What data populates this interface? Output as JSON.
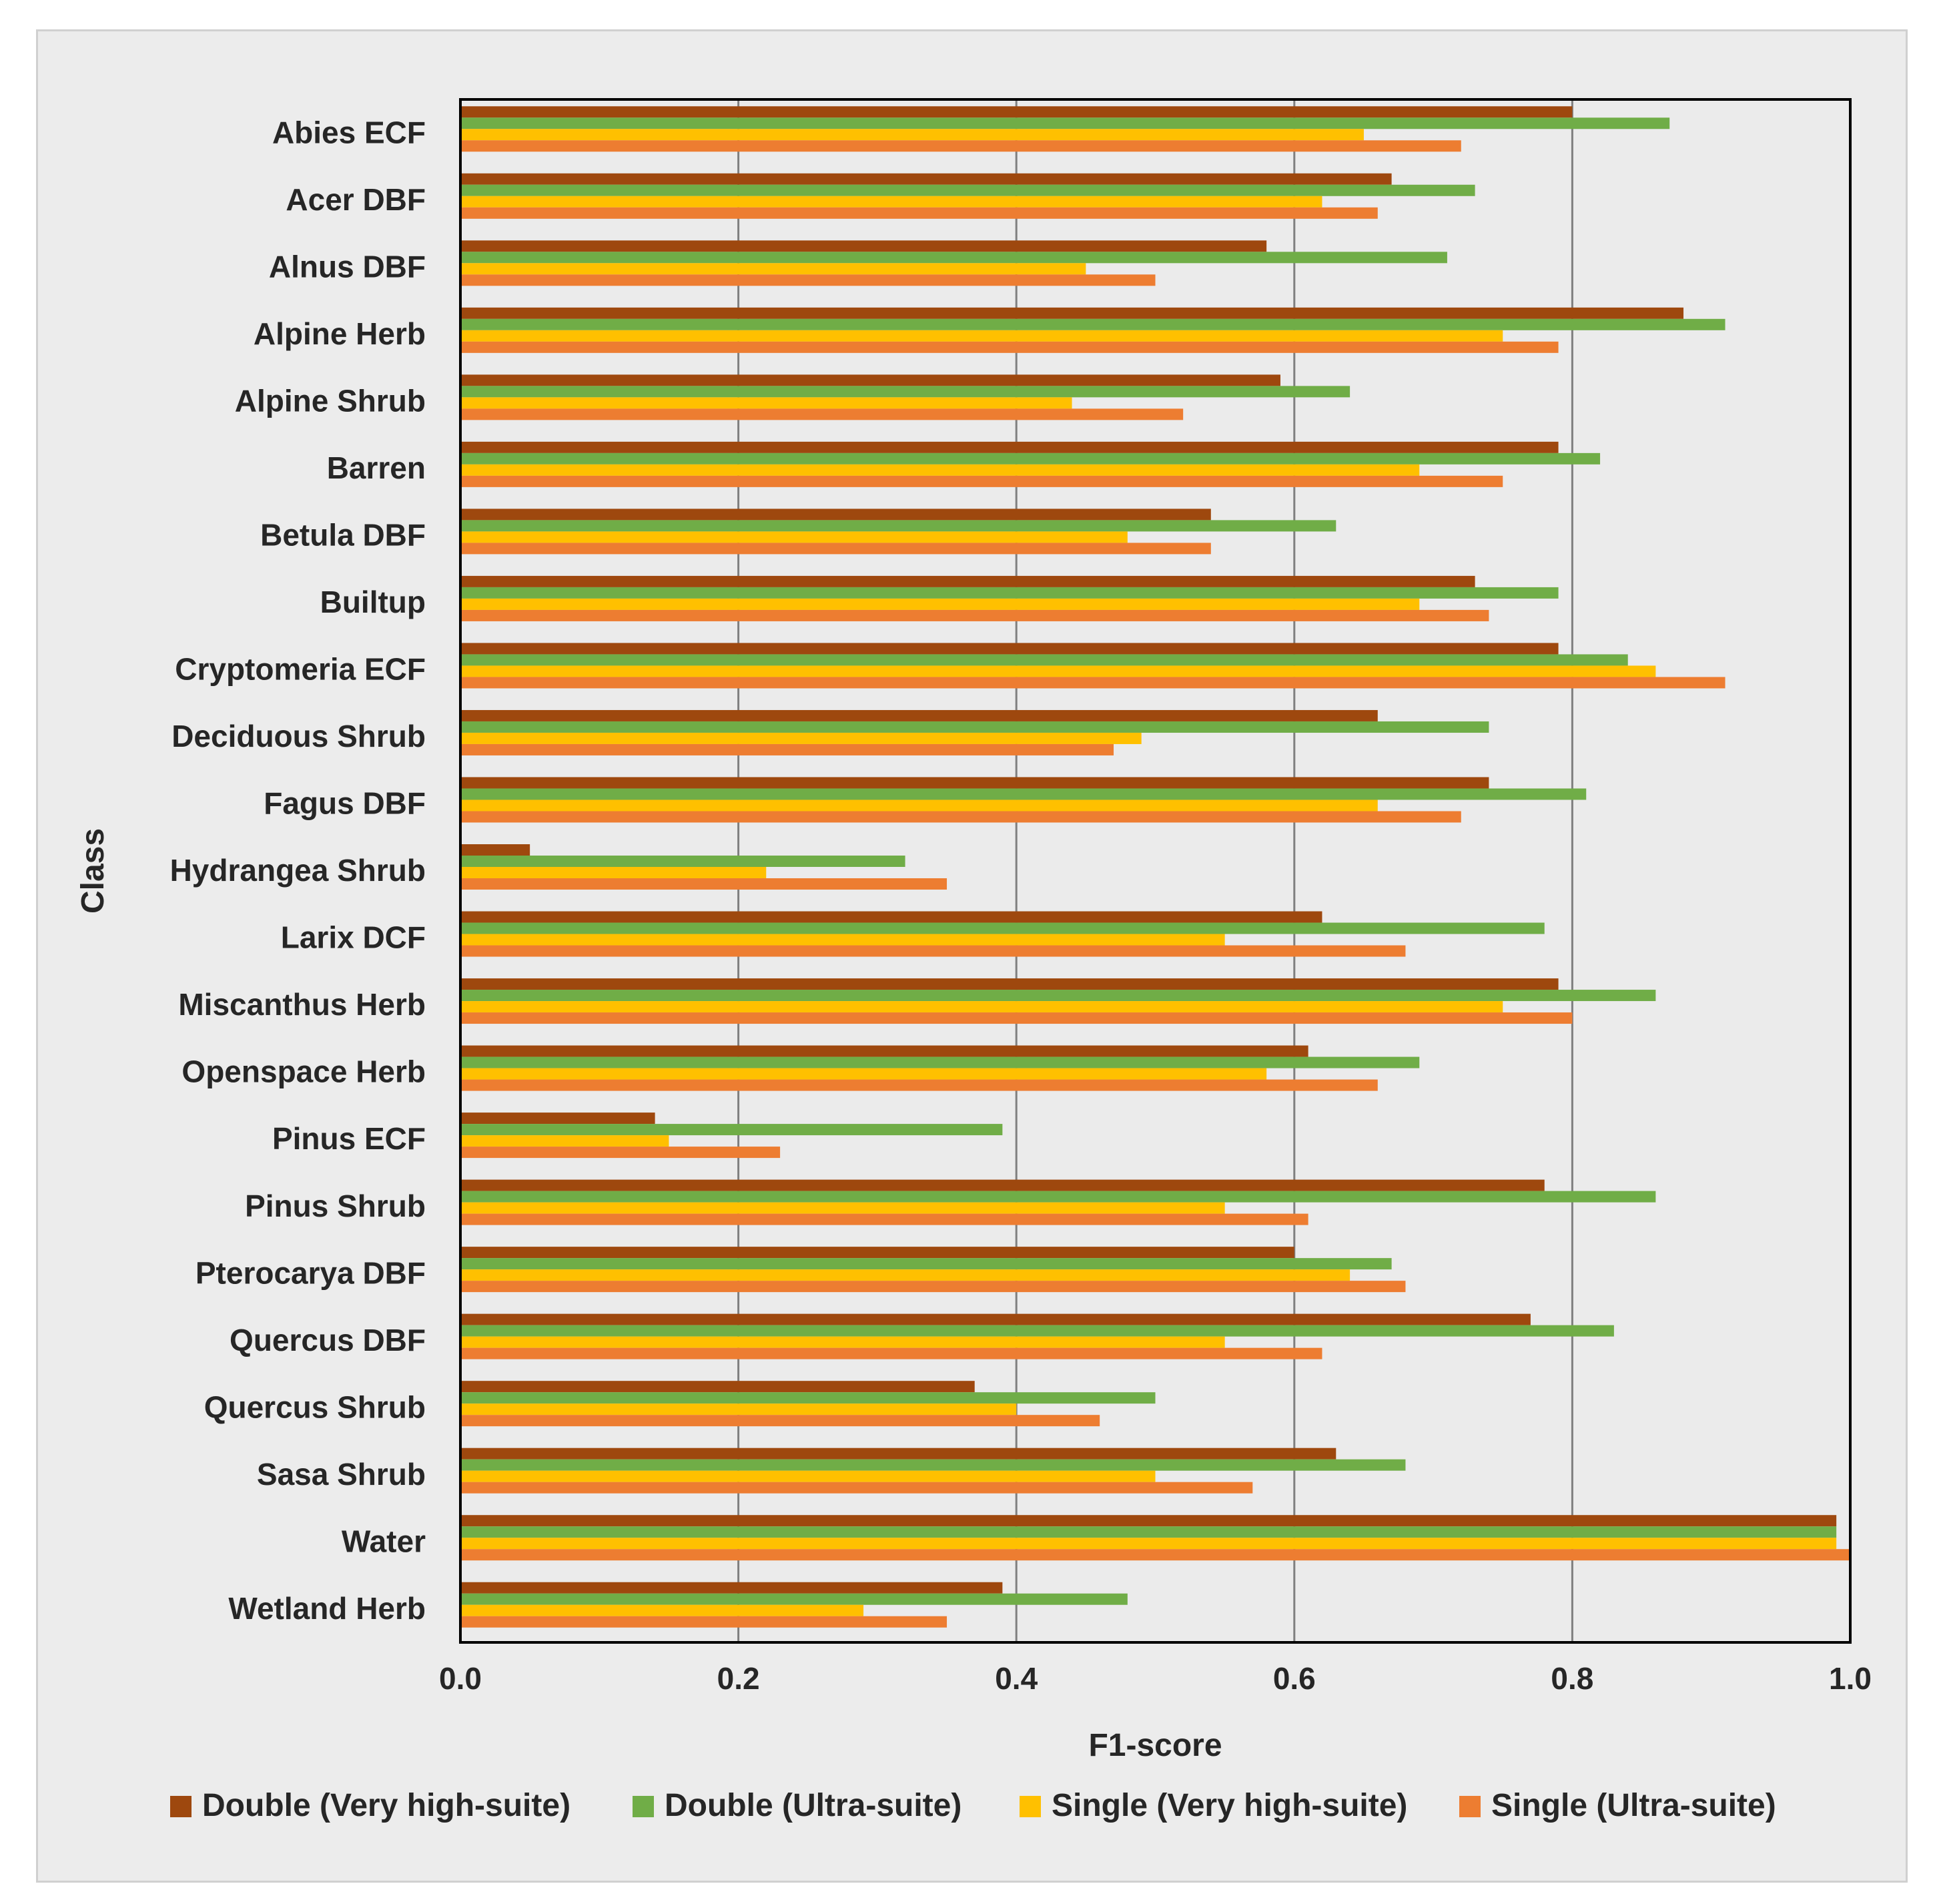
{
  "chart_data": {
    "type": "bar",
    "orientation": "horizontal",
    "categories": [
      "Abies ECF",
      "Acer DBF",
      "Alnus DBF",
      "Alpine Herb",
      "Alpine Shrub",
      "Barren",
      "Betula DBF",
      "Builtup",
      "Cryptomeria ECF",
      "Deciduous Shrub",
      "Fagus DBF",
      "Hydrangea Shrub",
      "Larix DCF",
      "Miscanthus Herb",
      "Openspace Herb",
      "Pinus ECF",
      "Pinus Shrub",
      "Pterocarya DBF",
      "Quercus DBF",
      "Quercus Shrub",
      "Sasa Shrub",
      "Water",
      "Wetland Herb"
    ],
    "series": [
      {
        "name": "Double (Very high-suite)",
        "color": "#9e480e",
        "values": [
          0.8,
          0.67,
          0.58,
          0.88,
          0.59,
          0.79,
          0.54,
          0.73,
          0.79,
          0.66,
          0.74,
          0.05,
          0.62,
          0.79,
          0.61,
          0.14,
          0.78,
          0.6,
          0.77,
          0.37,
          0.63,
          0.99,
          0.39
        ]
      },
      {
        "name": "Double (Ultra-suite)",
        "color": "#70ad47",
        "values": [
          0.87,
          0.73,
          0.71,
          0.91,
          0.64,
          0.82,
          0.63,
          0.79,
          0.84,
          0.74,
          0.81,
          0.32,
          0.78,
          0.86,
          0.69,
          0.39,
          0.86,
          0.67,
          0.83,
          0.5,
          0.68,
          0.99,
          0.48
        ]
      },
      {
        "name": "Single (Very high-suite)",
        "color": "#ffc000",
        "values": [
          0.65,
          0.62,
          0.45,
          0.75,
          0.44,
          0.69,
          0.48,
          0.69,
          0.86,
          0.49,
          0.66,
          0.22,
          0.55,
          0.75,
          0.58,
          0.15,
          0.55,
          0.64,
          0.55,
          0.4,
          0.5,
          0.99,
          0.29
        ]
      },
      {
        "name": "Single (Ultra-suite)",
        "color": "#ed7d31",
        "values": [
          0.72,
          0.66,
          0.5,
          0.79,
          0.52,
          0.75,
          0.54,
          0.74,
          0.91,
          0.47,
          0.72,
          0.35,
          0.68,
          0.8,
          0.66,
          0.23,
          0.61,
          0.68,
          0.62,
          0.46,
          0.57,
          1.0,
          0.35
        ]
      }
    ],
    "xlabel": "F1-score",
    "ylabel": "Class",
    "xlim": [
      0,
      1.0
    ],
    "xticks": [
      "0.0",
      "0.2",
      "0.4",
      "0.6",
      "0.8",
      "1.0"
    ],
    "grid": "vertical",
    "legend_position": "bottom"
  }
}
